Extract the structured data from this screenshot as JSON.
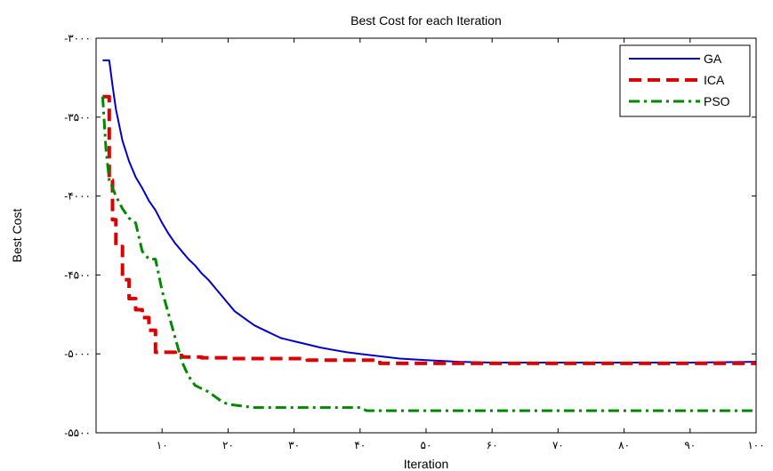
{
  "chart_data": {
    "type": "line",
    "title": "Best Cost for each Iteration",
    "xlabel": "Iteration",
    "ylabel": "Best Cost",
    "xlim": [
      0,
      100
    ],
    "ylim": [
      -5500,
      -3000
    ],
    "xticks": [
      0,
      10,
      20,
      30,
      40,
      50,
      60,
      70,
      80,
      90,
      100
    ],
    "xtick_labels": [
      "",
      "۱۰",
      "۲۰",
      "۳۰",
      "۴۰",
      "۵۰",
      "۶۰",
      "۷۰",
      "۸۰",
      "۹۰",
      "۱۰۰"
    ],
    "yticks": [
      -3000,
      -3500,
      -4000,
      -4500,
      -5000,
      -5500
    ],
    "ytick_labels": [
      "-۳۰۰۰",
      "-۳۵۰۰",
      "-۴۰۰۰",
      "-۴۵۰۰",
      "-۵۰۰۰",
      "-۵۵۰۰"
    ],
    "grid": false,
    "legend_position": "top-right",
    "series": [
      {
        "name": "GA",
        "color": "#0000cc",
        "style": "solid",
        "step": false,
        "points": [
          [
            1,
            -3140
          ],
          [
            2,
            -3140
          ],
          [
            2.5,
            -3300
          ],
          [
            3,
            -3450
          ],
          [
            4,
            -3650
          ],
          [
            5,
            -3780
          ],
          [
            6,
            -3880
          ],
          [
            7,
            -3950
          ],
          [
            8,
            -4030
          ],
          [
            9,
            -4090
          ],
          [
            10,
            -4170
          ],
          [
            11,
            -4240
          ],
          [
            12,
            -4300
          ],
          [
            13,
            -4350
          ],
          [
            14,
            -4400
          ],
          [
            15,
            -4440
          ],
          [
            16,
            -4490
          ],
          [
            17,
            -4530
          ],
          [
            18,
            -4580
          ],
          [
            19,
            -4630
          ],
          [
            20,
            -4680
          ],
          [
            21,
            -4730
          ],
          [
            22,
            -4760
          ],
          [
            23,
            -4790
          ],
          [
            24,
            -4820
          ],
          [
            25,
            -4840
          ],
          [
            26,
            -4860
          ],
          [
            27,
            -4880
          ],
          [
            28,
            -4900
          ],
          [
            29,
            -4910
          ],
          [
            30,
            -4920
          ],
          [
            32,
            -4940
          ],
          [
            34,
            -4960
          ],
          [
            36,
            -4975
          ],
          [
            38,
            -4990
          ],
          [
            40,
            -5000
          ],
          [
            42,
            -5010
          ],
          [
            44,
            -5020
          ],
          [
            46,
            -5030
          ],
          [
            48,
            -5035
          ],
          [
            50,
            -5040
          ],
          [
            55,
            -5050
          ],
          [
            60,
            -5055
          ],
          [
            70,
            -5055
          ],
          [
            80,
            -5055
          ],
          [
            90,
            -5055
          ],
          [
            100,
            -5050
          ]
        ]
      },
      {
        "name": "ICA",
        "color": "#dd0000",
        "style": "dashed",
        "step": true,
        "points": [
          [
            1,
            -3370
          ],
          [
            2,
            -3900
          ],
          [
            2.5,
            -4150
          ],
          [
            3,
            -4320
          ],
          [
            4,
            -4530
          ],
          [
            5,
            -4650
          ],
          [
            6,
            -4720
          ],
          [
            7,
            -4770
          ],
          [
            8,
            -4850
          ],
          [
            9,
            -4990
          ],
          [
            11,
            -4990
          ],
          [
            12,
            -5010
          ],
          [
            13,
            -5020
          ],
          [
            14,
            -5020
          ],
          [
            15,
            -5020
          ],
          [
            16,
            -5025
          ],
          [
            19,
            -5025
          ],
          [
            20,
            -5030
          ],
          [
            30,
            -5030
          ],
          [
            32,
            -5040
          ],
          [
            40,
            -5040
          ],
          [
            43,
            -5060
          ],
          [
            60,
            -5060
          ],
          [
            62,
            -5060
          ],
          [
            100,
            -5060
          ]
        ]
      },
      {
        "name": "PSO",
        "color": "#008800",
        "style": "dashdot",
        "step": false,
        "points": [
          [
            1,
            -3370
          ],
          [
            1.5,
            -3700
          ],
          [
            2,
            -3900
          ],
          [
            3,
            -4000
          ],
          [
            4,
            -4080
          ],
          [
            5,
            -4140
          ],
          [
            6,
            -4170
          ],
          [
            7,
            -4350
          ],
          [
            8,
            -4400
          ],
          [
            9,
            -4400
          ],
          [
            10,
            -4600
          ],
          [
            11,
            -4750
          ],
          [
            12,
            -4900
          ],
          [
            13,
            -5050
          ],
          [
            14,
            -5140
          ],
          [
            15,
            -5200
          ],
          [
            16,
            -5220
          ],
          [
            17,
            -5240
          ],
          [
            18,
            -5270
          ],
          [
            19,
            -5300
          ],
          [
            20,
            -5320
          ],
          [
            22,
            -5330
          ],
          [
            24,
            -5340
          ],
          [
            26,
            -5340
          ],
          [
            30,
            -5340
          ],
          [
            35,
            -5340
          ],
          [
            40,
            -5340
          ],
          [
            41,
            -5360
          ],
          [
            45,
            -5360
          ],
          [
            50,
            -5360
          ],
          [
            60,
            -5360
          ],
          [
            70,
            -5360
          ],
          [
            80,
            -5360
          ],
          [
            90,
            -5360
          ],
          [
            100,
            -5360
          ]
        ]
      }
    ]
  }
}
